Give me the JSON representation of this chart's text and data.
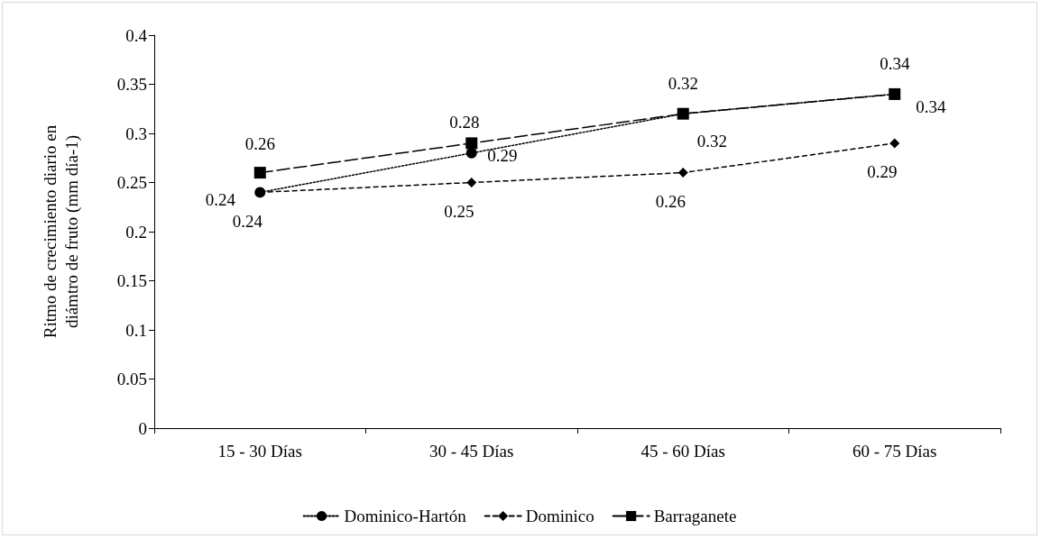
{
  "chart_data": {
    "type": "line",
    "ylabel": "Ritmo de crecimiento diario en diámtro de fruto (mm día-1)",
    "categories": [
      "15 - 30 Días",
      "30 - 45 Días",
      "45 - 60 Días",
      "60 - 75 Días"
    ],
    "series": [
      {
        "name": "Dominico-Hartón",
        "color": "#000000",
        "marker": "circle",
        "line_style": "dotted",
        "values": [
          0.24,
          0.28,
          0.32,
          0.34
        ]
      },
      {
        "name": "Dominico",
        "color": "#000000",
        "marker": "diamond",
        "line_style": "dashed",
        "values": [
          0.24,
          0.25,
          0.26,
          0.29
        ]
      },
      {
        "name": "Barraganete",
        "color": "#000000",
        "marker": "square",
        "line_style": "dashed",
        "values": [
          0.26,
          0.29,
          0.32,
          0.34
        ]
      }
    ],
    "ylim": [
      0,
      0.4
    ],
    "yticks": [
      0,
      0.05,
      0.1,
      0.15,
      0.2,
      0.25,
      0.3,
      0.35,
      0.4
    ],
    "data_labels": true,
    "grid": false,
    "legend": "bottom"
  }
}
